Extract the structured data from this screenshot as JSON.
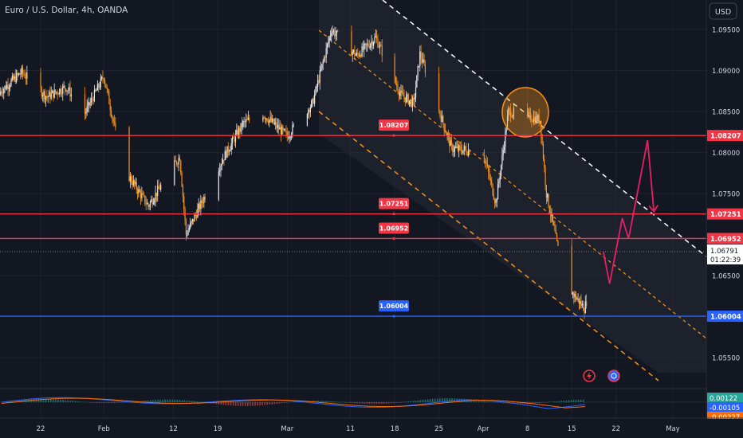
{
  "header": {
    "symbol_title": "Euro / U.S. Dollar, 4h, OANDA",
    "currency_button": "USD"
  },
  "colors": {
    "background": "#131722",
    "axis_panel": "#131722",
    "grid": "#1e222d",
    "candle_up": "#e8e8e8",
    "candle_down": "#f7931a",
    "resistance_line": "#f23645",
    "support_line": "#2962ff",
    "channel_fill": "#2a2e39",
    "channel_dashed_orange": "#f7931a",
    "channel_dashed_white": "#ffffff",
    "projection_arrow": "#e91e63",
    "highlight_circle": "#f7931a",
    "macd_line": "#2962ff",
    "signal_line": "#ff6d00",
    "text": "#d1d4dc"
  },
  "chart_data": {
    "type": "candlestick",
    "y_axis": {
      "range": [
        1.05,
        1.1
      ],
      "tick_labels": [
        "1.09500",
        "1.09000",
        "1.08500",
        "1.08000",
        "1.07500",
        "1.06500",
        "1.05500"
      ]
    },
    "x_axis": {
      "tick_labels": [
        "22",
        "Feb",
        "12",
        "19",
        "Mar",
        "11",
        "18",
        "25",
        "Apr",
        "8",
        "15",
        "22",
        "May"
      ]
    },
    "price_levels": [
      {
        "value": 1.08207,
        "label": "1.08207",
        "color": "#f23645"
      },
      {
        "value": 1.07251,
        "label": "1.07251",
        "color": "#f23645"
      },
      {
        "value": 1.06952,
        "label": "1.06952",
        "color": "#f23645"
      },
      {
        "value": 1.06004,
        "label": "1.06004",
        "color": "#2962ff"
      }
    ],
    "current_price": {
      "value": 1.06791,
      "label": "1.06791",
      "countdown": "01:22:39"
    },
    "price_path": [
      {
        "x": "Jan 15",
        "y": 1.087
      },
      {
        "x": "Jan 19",
        "y": 1.0898
      },
      {
        "x": "Jan 23",
        "y": 1.0868
      },
      {
        "x": "Jan 26",
        "y": 1.088
      },
      {
        "x": "Jan 29",
        "y": 1.0848
      },
      {
        "x": "Feb 1",
        "y": 1.0893
      },
      {
        "x": "Feb 4",
        "y": 1.0782
      },
      {
        "x": "Feb 8",
        "y": 1.0735
      },
      {
        "x": "Feb 13",
        "y": 1.0795
      },
      {
        "x": "Feb 14",
        "y": 1.07
      },
      {
        "x": "Feb 20",
        "y": 1.0795
      },
      {
        "x": "Feb 23",
        "y": 1.0835
      },
      {
        "x": "Feb 26",
        "y": 1.0848
      },
      {
        "x": "Mar 1",
        "y": 1.082
      },
      {
        "x": "Mar 5",
        "y": 1.086
      },
      {
        "x": "Mar 8",
        "y": 1.095
      },
      {
        "x": "Mar 12",
        "y": 1.0918
      },
      {
        "x": "Mar 15",
        "y": 1.094
      },
      {
        "x": "Mar 19",
        "y": 1.087
      },
      {
        "x": "Mar 21",
        "y": 1.086
      },
      {
        "x": "Mar 22",
        "y": 1.092
      },
      {
        "x": "Mar 27",
        "y": 1.0805
      },
      {
        "x": "Apr 1",
        "y": 1.08
      },
      {
        "x": "Apr 3",
        "y": 1.0738
      },
      {
        "x": "Apr 5",
        "y": 1.085
      },
      {
        "x": "Apr 10",
        "y": 1.084
      },
      {
        "x": "Apr 11",
        "y": 1.075
      },
      {
        "x": "Apr 14",
        "y": 1.064
      },
      {
        "x": "Apr 17",
        "y": 1.061
      },
      {
        "x": "Apr 19",
        "y": 1.066
      },
      {
        "x": "Apr 20",
        "y": 1.0679
      }
    ],
    "projection_path": [
      {
        "x": "Apr 20",
        "y": 1.0679
      },
      {
        "x": "Apr 21",
        "y": 1.064
      },
      {
        "x": "Apr 23",
        "y": 1.072
      },
      {
        "x": "Apr 24",
        "y": 1.0695
      },
      {
        "x": "Apr 27",
        "y": 1.0815
      },
      {
        "x": "Apr 28",
        "y": 1.0728
      }
    ],
    "macd": {
      "labels": [
        "0.00122",
        "-0.00105",
        "-0.00227"
      ],
      "colors": [
        "#26a69a",
        "#2962ff",
        "#ff6d00"
      ]
    }
  }
}
